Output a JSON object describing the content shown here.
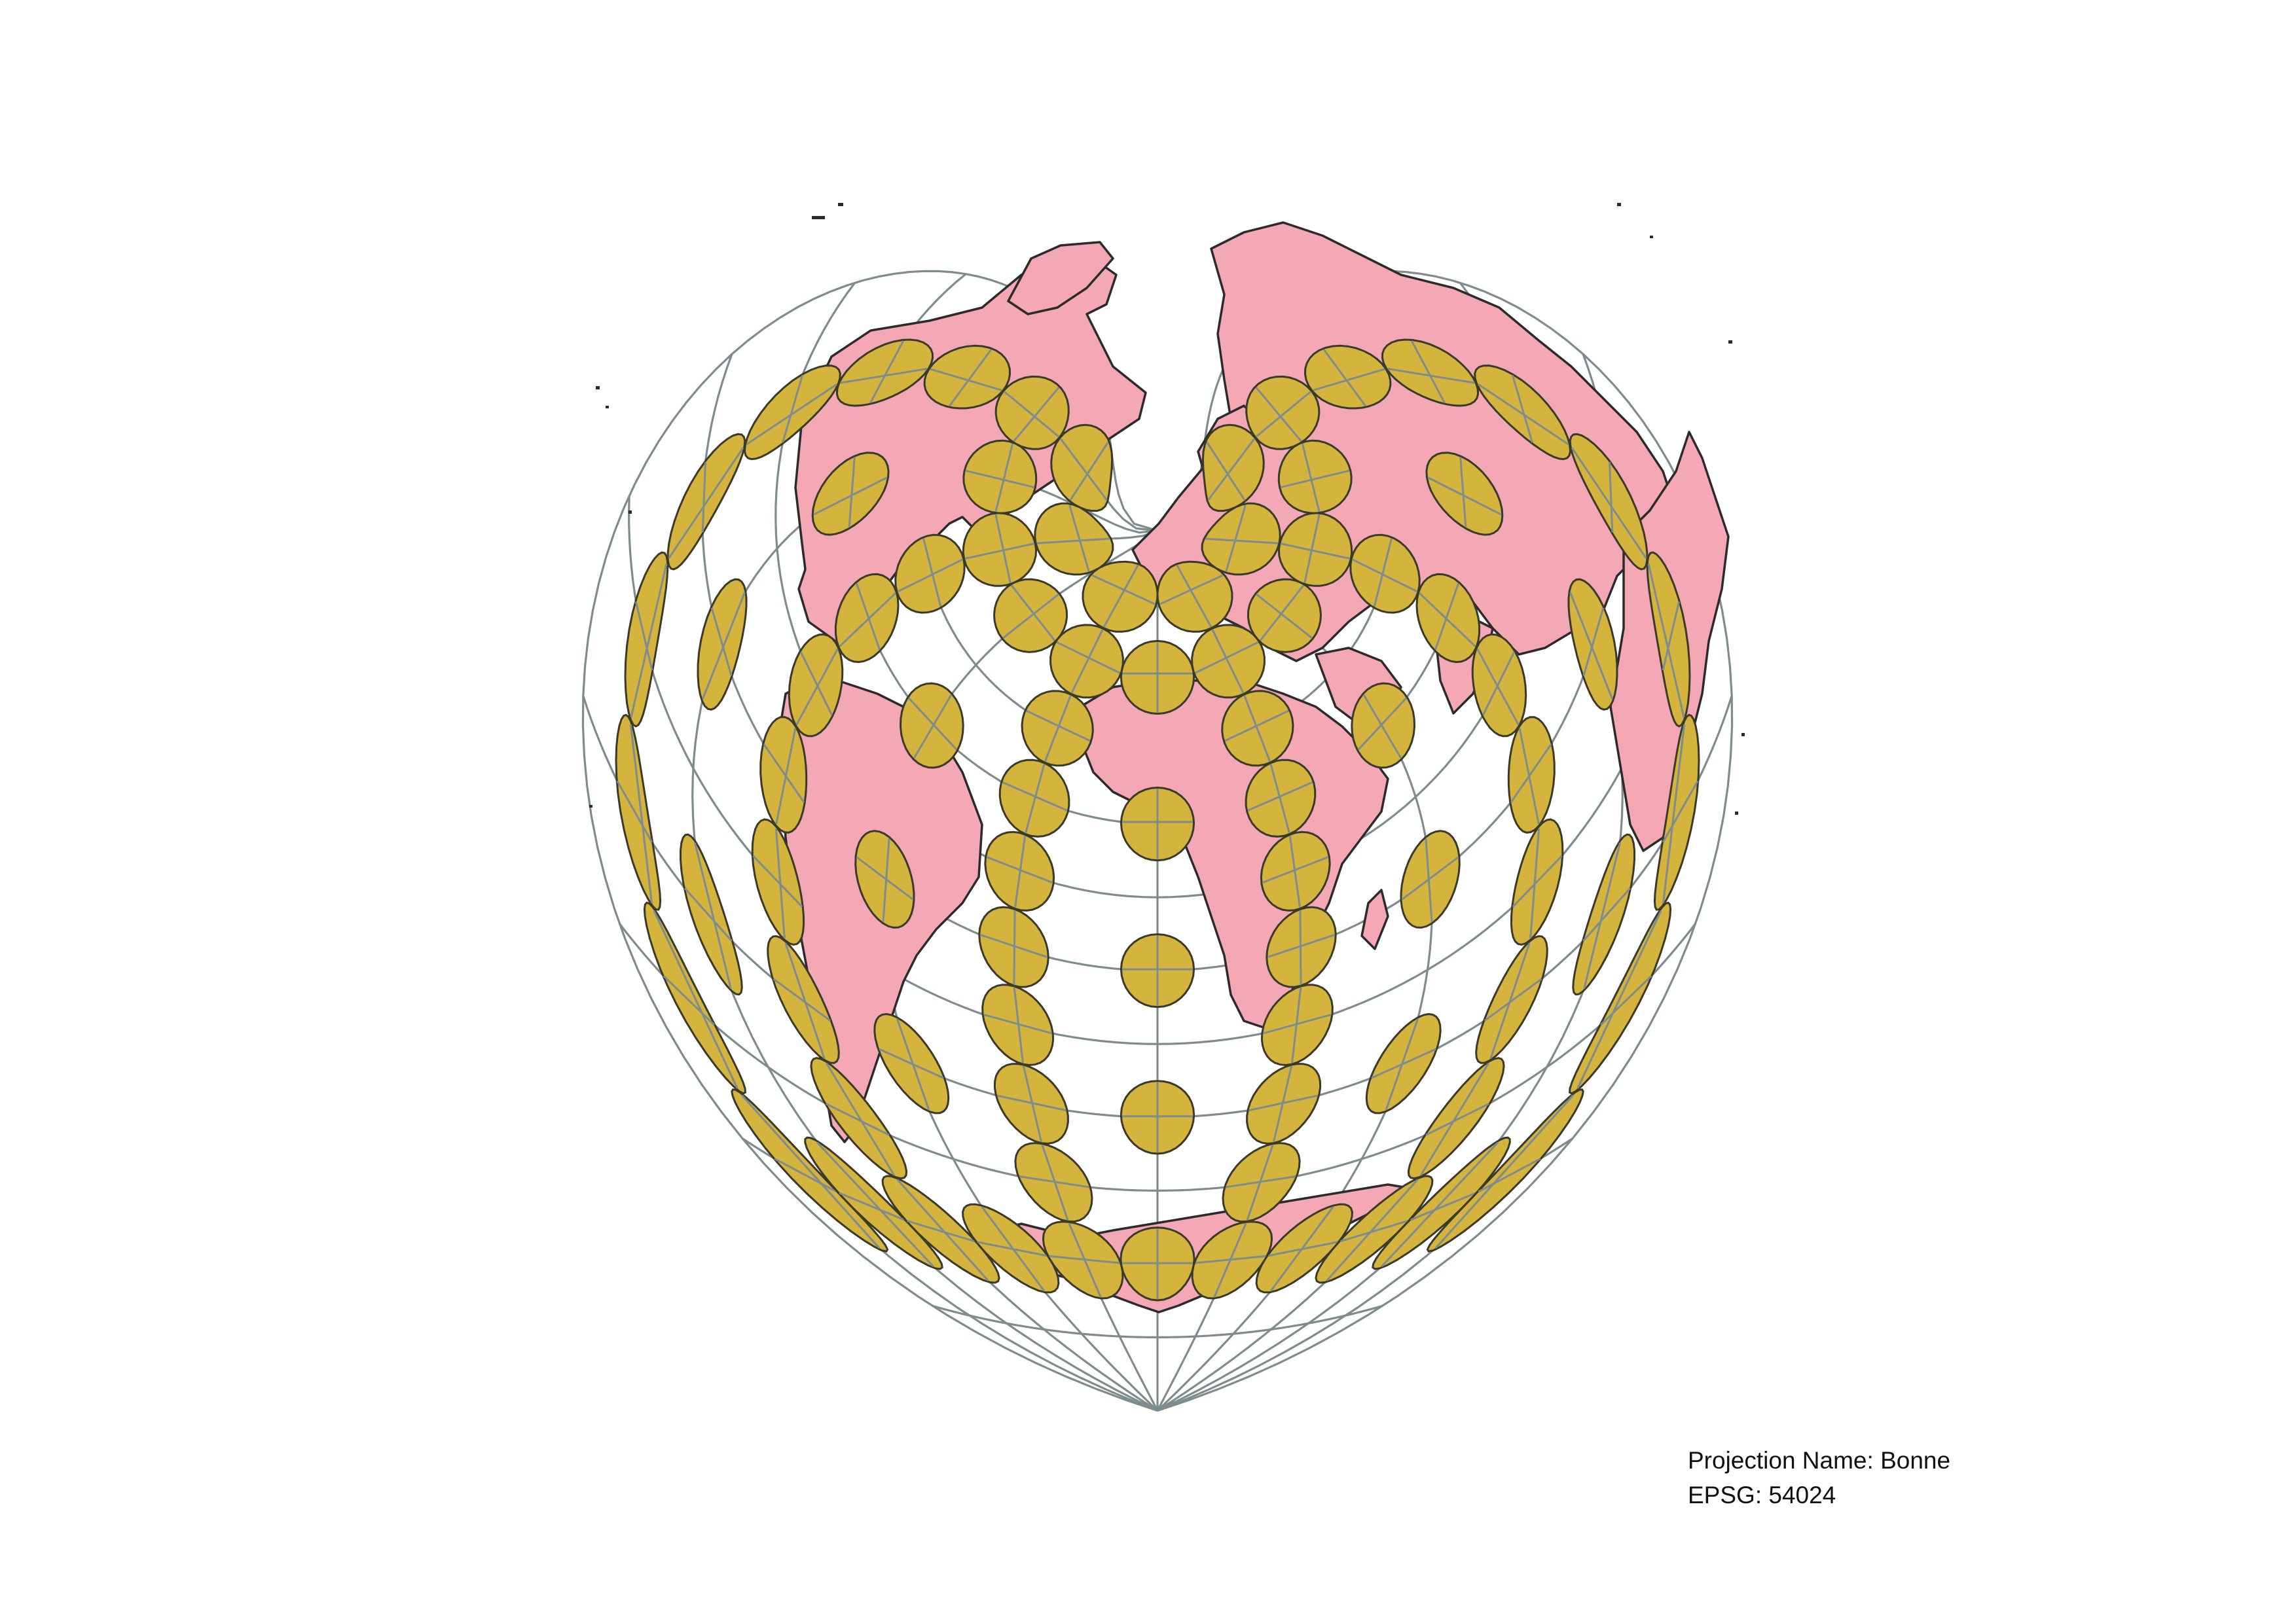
{
  "projection": {
    "name_line": "Projection Name: Bonne",
    "epsg_line": "EPSG: 54024"
  },
  "colors": {
    "land": "#f4a7b4",
    "coastline": "#2b2b2b",
    "graticule": "#7f8c8d",
    "tissot_fill": "#d4b43c",
    "background": "#ffffff"
  }
}
